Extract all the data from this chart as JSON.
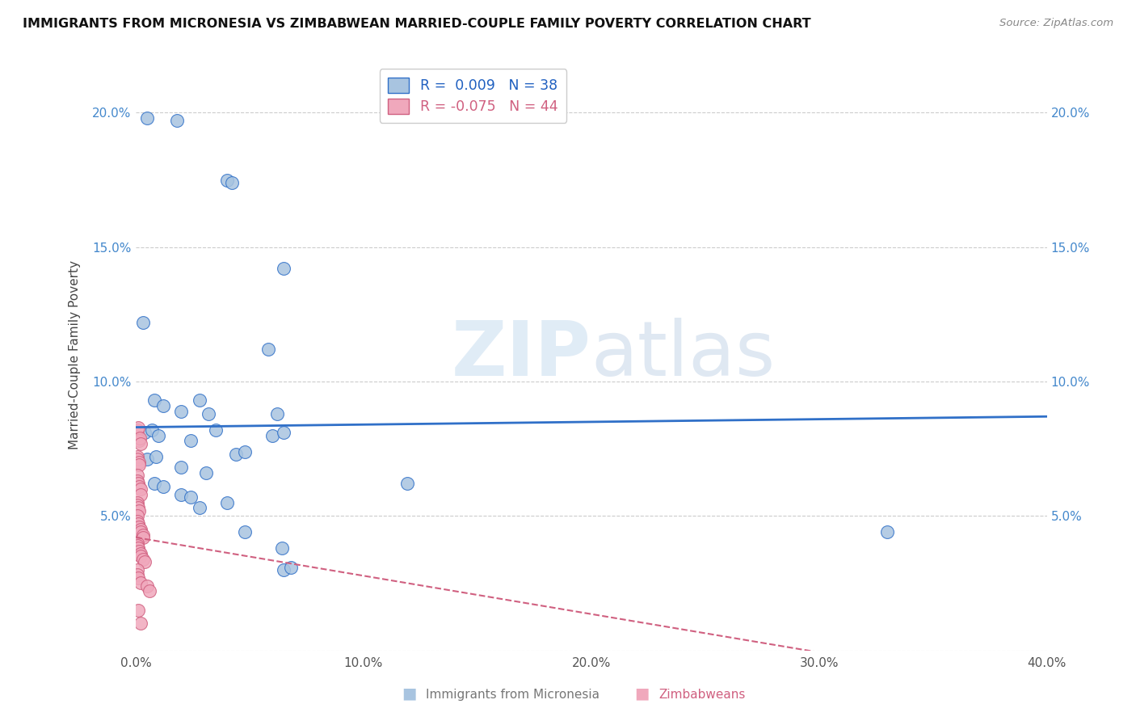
{
  "title": "IMMIGRANTS FROM MICRONESIA VS ZIMBABWEAN MARRIED-COUPLE FAMILY POVERTY CORRELATION CHART",
  "source": "Source: ZipAtlas.com",
  "xlabel_blue": "Immigrants from Micronesia",
  "xlabel_pink": "Zimbabweans",
  "ylabel": "Married-Couple Family Poverty",
  "watermark_zip": "ZIP",
  "watermark_atlas": "atlas",
  "legend_blue_r": "0.009",
  "legend_blue_n": "38",
  "legend_pink_r": "-0.075",
  "legend_pink_n": "44",
  "blue_color": "#a8c4e0",
  "blue_line_color": "#3070c8",
  "pink_color": "#f0a8bc",
  "pink_line_color": "#d06080",
  "blue_scatter": [
    [
      0.5,
      19.8
    ],
    [
      1.8,
      19.7
    ],
    [
      4.0,
      17.5
    ],
    [
      4.2,
      17.4
    ],
    [
      6.5,
      14.2
    ],
    [
      0.3,
      12.2
    ],
    [
      5.8,
      11.2
    ],
    [
      0.8,
      9.3
    ],
    [
      1.2,
      9.1
    ],
    [
      2.8,
      9.3
    ],
    [
      2.0,
      8.9
    ],
    [
      3.2,
      8.8
    ],
    [
      6.2,
      8.8
    ],
    [
      0.4,
      8.1
    ],
    [
      0.7,
      8.2
    ],
    [
      1.0,
      8.0
    ],
    [
      2.4,
      7.8
    ],
    [
      3.5,
      8.2
    ],
    [
      6.0,
      8.0
    ],
    [
      6.5,
      8.1
    ],
    [
      0.5,
      7.1
    ],
    [
      0.9,
      7.2
    ],
    [
      2.0,
      6.8
    ],
    [
      3.1,
      6.6
    ],
    [
      4.4,
      7.3
    ],
    [
      4.8,
      7.4
    ],
    [
      0.8,
      6.2
    ],
    [
      1.2,
      6.1
    ],
    [
      2.0,
      5.8
    ],
    [
      2.4,
      5.7
    ],
    [
      2.8,
      5.3
    ],
    [
      4.0,
      5.5
    ],
    [
      4.8,
      4.4
    ],
    [
      6.4,
      3.8
    ],
    [
      6.5,
      3.0
    ],
    [
      6.8,
      3.1
    ],
    [
      11.9,
      6.2
    ],
    [
      33.0,
      4.4
    ]
  ],
  "pink_scatter": [
    [
      0.05,
      8.0
    ],
    [
      0.08,
      8.2
    ],
    [
      0.1,
      8.3
    ],
    [
      0.15,
      7.8
    ],
    [
      0.18,
      7.9
    ],
    [
      0.2,
      7.7
    ],
    [
      0.05,
      7.2
    ],
    [
      0.08,
      7.1
    ],
    [
      0.12,
      7.0
    ],
    [
      0.15,
      6.9
    ],
    [
      0.05,
      6.5
    ],
    [
      0.07,
      6.3
    ],
    [
      0.1,
      6.2
    ],
    [
      0.12,
      6.1
    ],
    [
      0.2,
      6.0
    ],
    [
      0.22,
      5.8
    ],
    [
      0.05,
      5.5
    ],
    [
      0.07,
      5.4
    ],
    [
      0.1,
      5.3
    ],
    [
      0.12,
      5.2
    ],
    [
      0.05,
      5.0
    ],
    [
      0.07,
      4.8
    ],
    [
      0.1,
      4.7
    ],
    [
      0.12,
      4.6
    ],
    [
      0.2,
      4.5
    ],
    [
      0.22,
      4.4
    ],
    [
      0.3,
      4.3
    ],
    [
      0.32,
      4.2
    ],
    [
      0.05,
      4.0
    ],
    [
      0.07,
      3.9
    ],
    [
      0.1,
      3.8
    ],
    [
      0.12,
      3.7
    ],
    [
      0.2,
      3.6
    ],
    [
      0.22,
      3.5
    ],
    [
      0.3,
      3.4
    ],
    [
      0.4,
      3.3
    ],
    [
      0.05,
      3.0
    ],
    [
      0.07,
      2.8
    ],
    [
      0.1,
      2.7
    ],
    [
      0.2,
      2.5
    ],
    [
      0.5,
      2.4
    ],
    [
      0.6,
      2.2
    ],
    [
      0.1,
      1.5
    ],
    [
      0.2,
      1.0
    ]
  ],
  "blue_trend": [
    0.0,
    40.0,
    8.3,
    8.7
  ],
  "pink_trend": [
    0.0,
    40.0,
    4.2,
    -1.5
  ],
  "xlim": [
    0.0,
    40.0
  ],
  "ylim": [
    0.0,
    22.0
  ],
  "xticks": [
    0.0,
    10.0,
    20.0,
    30.0,
    40.0
  ],
  "yticks": [
    0.0,
    5.0,
    10.0,
    15.0,
    20.0
  ],
  "xtick_labels": [
    "0.0%",
    "10.0%",
    "20.0%",
    "30.0%",
    "40.0%"
  ],
  "ytick_labels_left": [
    "",
    "5.0%",
    "10.0%",
    "15.0%",
    "20.0%"
  ],
  "ytick_labels_right": [
    "",
    "5.0%",
    "10.0%",
    "15.0%",
    "20.0%"
  ]
}
